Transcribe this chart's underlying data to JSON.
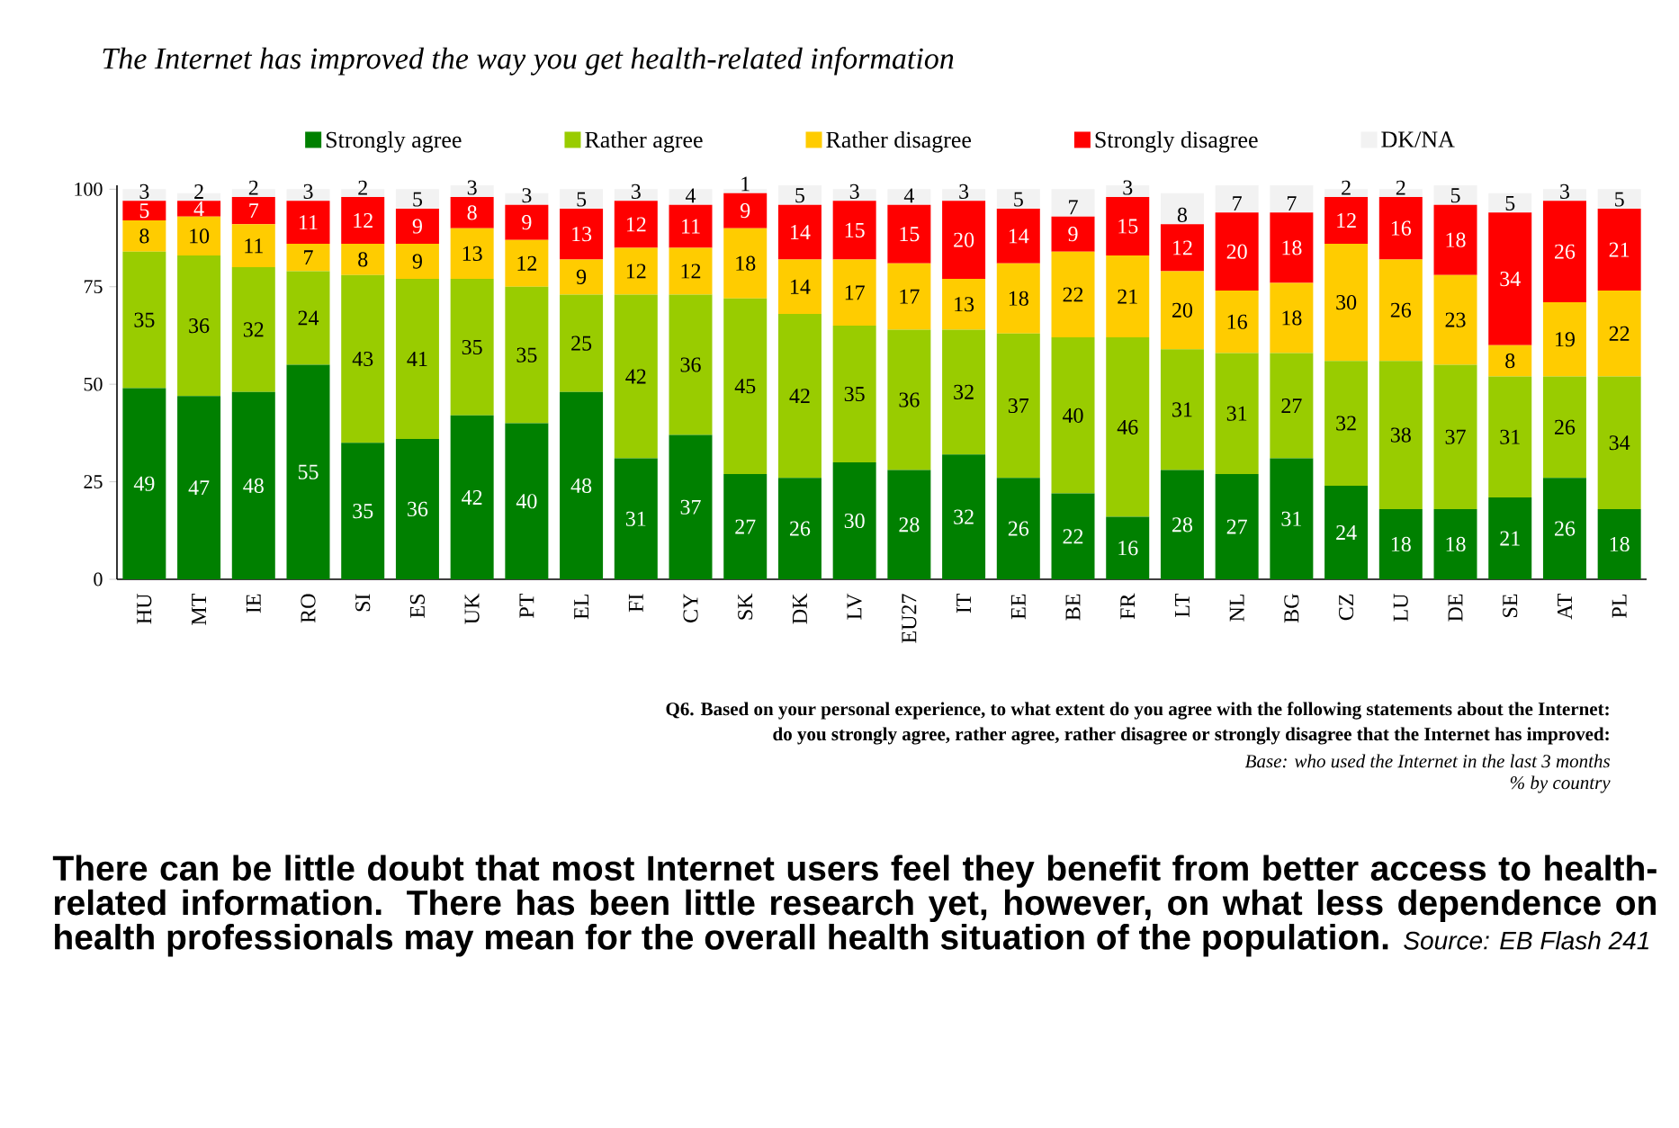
{
  "chart_data": {
    "type": "bar",
    "stacked": true,
    "title": "The Internet has improved the way you get health-related information",
    "categories": [
      "HU",
      "MT",
      "IE",
      "RO",
      "SI",
      "ES",
      "UK",
      "PT",
      "EL",
      "FI",
      "CY",
      "SK",
      "DK",
      "LV",
      "EU27",
      "IT",
      "EE",
      "BE",
      "FR",
      "LT",
      "NL",
      "BG",
      "CZ",
      "LU",
      "DE",
      "SE",
      "AT",
      "PL"
    ],
    "series": [
      {
        "name": "Strongly agree",
        "color": "#008000",
        "values": [
          49,
          47,
          48,
          55,
          35,
          36,
          42,
          40,
          48,
          31,
          37,
          27,
          26,
          30,
          28,
          32,
          26,
          22,
          16,
          28,
          27,
          31,
          24,
          18,
          18,
          21,
          26,
          18
        ]
      },
      {
        "name": "Rather agree",
        "color": "#99cc00",
        "values": [
          35,
          36,
          32,
          24,
          43,
          41,
          35,
          35,
          25,
          42,
          36,
          45,
          42,
          35,
          36,
          32,
          37,
          40,
          46,
          31,
          31,
          27,
          32,
          38,
          37,
          31,
          26,
          34
        ]
      },
      {
        "name": "Rather disagree",
        "color": "#ffcc00",
        "values": [
          8,
          10,
          11,
          7,
          8,
          9,
          13,
          12,
          9,
          12,
          12,
          18,
          14,
          17,
          17,
          13,
          18,
          22,
          21,
          20,
          16,
          18,
          30,
          26,
          23,
          8,
          19,
          22
        ]
      },
      {
        "name": "Strongly disagree",
        "color": "#ff0000",
        "values": [
          5,
          4,
          7,
          11,
          12,
          9,
          8,
          9,
          13,
          12,
          11,
          9,
          14,
          15,
          15,
          20,
          14,
          9,
          15,
          12,
          20,
          18,
          12,
          16,
          18,
          34,
          26,
          21
        ]
      },
      {
        "name": "DK/NA",
        "color": "#f2f2f2",
        "values": [
          3,
          2,
          2,
          3,
          2,
          5,
          3,
          3,
          5,
          3,
          4,
          1,
          5,
          3,
          4,
          3,
          5,
          7,
          3,
          8,
          7,
          7,
          2,
          2,
          5,
          5,
          3,
          5
        ]
      }
    ],
    "ylim": [
      0,
      101
    ],
    "yticks": [
      0,
      25,
      50,
      75,
      100
    ],
    "data_labels": true,
    "legend": "top",
    "annotations": [
      "Q6. Based on your personal experience, to what extent do you agree with the following statements about the Internet:",
      "do you strongly agree, rather agree, rather disagree or strongly disagree that the Internet has improved:",
      "Base: who used the Internet in the last 3 months",
      "% by country",
      "There can be little doubt that most Internet users feel they benefit from better access to health-related information. There has been little research yet, however, on what less dependence on health professionals may mean for the overall health situation of the population.",
      "Source: EB Flash 241"
    ]
  }
}
